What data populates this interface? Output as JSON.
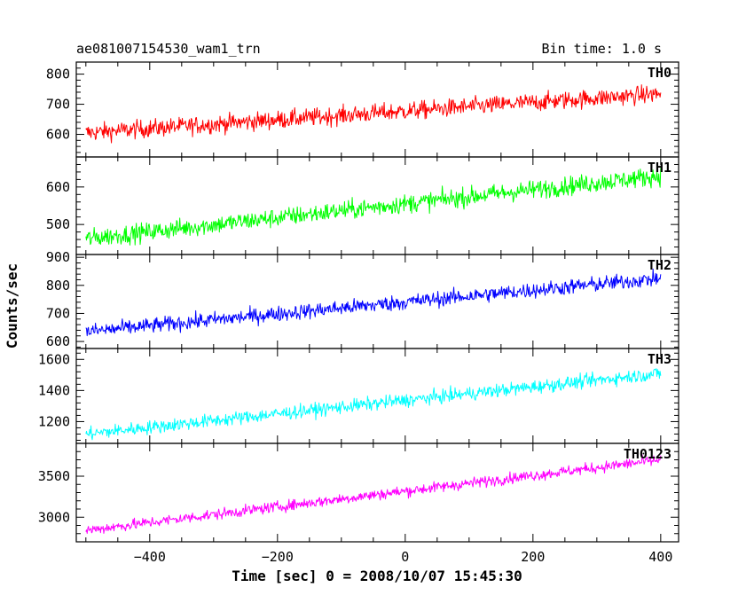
{
  "header": {
    "source": "ae081007154530_wam1_trn",
    "bin_time": "Bin time: 1.0 s"
  },
  "chart_data": {
    "type": "line",
    "title": "ae081007154530_wam1_trn",
    "subtitle": "Bin time: 1.0 s",
    "xlabel": "Time [sec] 0 = 2008/10/07 15:45:30",
    "ylabel": "Counts/sec",
    "xlim": [
      -515,
      428
    ],
    "x_start": -500,
    "x_end": 400,
    "x_step": 1,
    "x_ticks": [
      -400,
      -200,
      0,
      200,
      400
    ],
    "x_tick_labels": [
      "−400",
      "−200",
      "0",
      "200",
      "400"
    ],
    "grid": false,
    "panels": [
      {
        "name": "TH0",
        "color": "#ff0000",
        "ylim": [
          525,
          840
        ],
        "y_ticks": [
          600,
          700,
          800
        ],
        "trend_start": 605,
        "trend_end": 735,
        "noise": 38
      },
      {
        "name": "TH1",
        "color": "#00ff00",
        "ylim": [
          420,
          680
        ],
        "y_ticks": [
          500,
          600
        ],
        "trend_start": 462,
        "trend_end": 630,
        "noise": 32
      },
      {
        "name": "TH2",
        "color": "#0000ff",
        "ylim": [
          575,
          910
        ],
        "y_ticks": [
          600,
          700,
          800,
          900
        ],
        "trend_start": 635,
        "trend_end": 825,
        "noise": 35
      },
      {
        "name": "TH3",
        "color": "#00ffff",
        "ylim": [
          1060,
          1670
        ],
        "y_ticks": [
          1200,
          1400,
          1600
        ],
        "trend_start": 1120,
        "trend_end": 1510,
        "noise": 55
      },
      {
        "name": "TH0123",
        "color": "#ff00ff",
        "ylim": [
          2700,
          3900
        ],
        "y_ticks": [
          3000,
          3500
        ],
        "trend_start": 2840,
        "trend_end": 3700,
        "noise": 85
      }
    ]
  }
}
